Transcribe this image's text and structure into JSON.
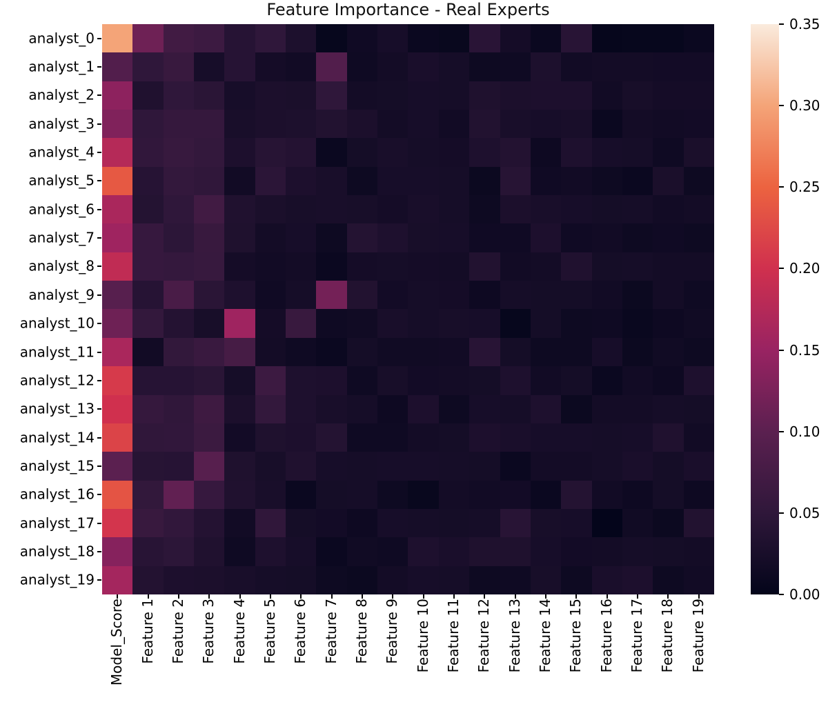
{
  "title": "Feature Importance - Real Experts",
  "chart_data": {
    "type": "heatmap",
    "rows": [
      "analyst_0",
      "analyst_1",
      "analyst_2",
      "analyst_3",
      "analyst_4",
      "analyst_5",
      "analyst_6",
      "analyst_7",
      "analyst_8",
      "analyst_9",
      "analyst_10",
      "analyst_11",
      "analyst_12",
      "analyst_13",
      "analyst_14",
      "analyst_15",
      "analyst_16",
      "analyst_17",
      "analyst_18",
      "analyst_19"
    ],
    "columns": [
      "Model_Score",
      "Feature 1",
      "Feature 2",
      "Feature 3",
      "Feature 4",
      "Feature 5",
      "Feature 6",
      "Feature 7",
      "Feature 8",
      "Feature 9",
      "Feature 10",
      "Feature 11",
      "Feature 12",
      "Feature 13",
      "Feature 14",
      "Feature 15",
      "Feature 16",
      "Feature 17",
      "Feature 18",
      "Feature 19"
    ],
    "values": [
      [
        0.3,
        0.115,
        0.07,
        0.065,
        0.04,
        0.05,
        0.03,
        0.005,
        0.015,
        0.023,
        0.009,
        0.007,
        0.043,
        0.02,
        0.009,
        0.042,
        0.003,
        0.005,
        0.005,
        0.009
      ],
      [
        0.09,
        0.05,
        0.06,
        0.023,
        0.04,
        0.02,
        0.017,
        0.09,
        0.014,
        0.019,
        0.026,
        0.022,
        0.013,
        0.014,
        0.03,
        0.017,
        0.019,
        0.019,
        0.018,
        0.018
      ],
      [
        0.14,
        0.033,
        0.05,
        0.044,
        0.023,
        0.028,
        0.027,
        0.05,
        0.019,
        0.021,
        0.023,
        0.022,
        0.032,
        0.028,
        0.029,
        0.029,
        0.017,
        0.024,
        0.02,
        0.02
      ],
      [
        0.13,
        0.05,
        0.057,
        0.057,
        0.025,
        0.028,
        0.03,
        0.035,
        0.028,
        0.019,
        0.023,
        0.017,
        0.035,
        0.025,
        0.023,
        0.025,
        0.009,
        0.019,
        0.017,
        0.018
      ],
      [
        0.175,
        0.052,
        0.059,
        0.054,
        0.029,
        0.041,
        0.037,
        0.009,
        0.021,
        0.025,
        0.022,
        0.02,
        0.031,
        0.036,
        0.012,
        0.031,
        0.023,
        0.022,
        0.014,
        0.027
      ],
      [
        0.24,
        0.04,
        0.054,
        0.051,
        0.017,
        0.045,
        0.029,
        0.025,
        0.013,
        0.023,
        0.023,
        0.022,
        0.01,
        0.041,
        0.015,
        0.017,
        0.013,
        0.009,
        0.027,
        0.013
      ],
      [
        0.165,
        0.038,
        0.05,
        0.07,
        0.033,
        0.027,
        0.024,
        0.025,
        0.024,
        0.02,
        0.025,
        0.022,
        0.013,
        0.028,
        0.025,
        0.023,
        0.021,
        0.022,
        0.017,
        0.019
      ],
      [
        0.155,
        0.058,
        0.047,
        0.06,
        0.032,
        0.019,
        0.023,
        0.013,
        0.038,
        0.031,
        0.024,
        0.023,
        0.015,
        0.015,
        0.029,
        0.015,
        0.017,
        0.013,
        0.015,
        0.013
      ],
      [
        0.185,
        0.058,
        0.056,
        0.059,
        0.02,
        0.017,
        0.019,
        0.009,
        0.02,
        0.022,
        0.02,
        0.019,
        0.035,
        0.017,
        0.019,
        0.033,
        0.021,
        0.022,
        0.019,
        0.019
      ],
      [
        0.095,
        0.04,
        0.08,
        0.044,
        0.031,
        0.015,
        0.022,
        0.12,
        0.035,
        0.018,
        0.022,
        0.02,
        0.012,
        0.022,
        0.021,
        0.021,
        0.017,
        0.01,
        0.019,
        0.014
      ],
      [
        0.115,
        0.054,
        0.037,
        0.024,
        0.155,
        0.02,
        0.06,
        0.014,
        0.016,
        0.025,
        0.022,
        0.024,
        0.023,
        0.005,
        0.021,
        0.013,
        0.014,
        0.008,
        0.012,
        0.016
      ],
      [
        0.165,
        0.017,
        0.053,
        0.061,
        0.076,
        0.019,
        0.014,
        0.009,
        0.021,
        0.016,
        0.016,
        0.017,
        0.042,
        0.021,
        0.013,
        0.013,
        0.023,
        0.01,
        0.016,
        0.013
      ],
      [
        0.21,
        0.04,
        0.04,
        0.044,
        0.022,
        0.065,
        0.031,
        0.029,
        0.014,
        0.024,
        0.018,
        0.019,
        0.021,
        0.031,
        0.017,
        0.021,
        0.009,
        0.017,
        0.012,
        0.031
      ],
      [
        0.2,
        0.057,
        0.051,
        0.067,
        0.028,
        0.054,
        0.031,
        0.025,
        0.022,
        0.012,
        0.029,
        0.013,
        0.023,
        0.022,
        0.031,
        0.01,
        0.019,
        0.019,
        0.022,
        0.021
      ],
      [
        0.22,
        0.051,
        0.052,
        0.064,
        0.018,
        0.032,
        0.029,
        0.038,
        0.014,
        0.014,
        0.019,
        0.021,
        0.029,
        0.026,
        0.023,
        0.023,
        0.022,
        0.023,
        0.033,
        0.017
      ],
      [
        0.1,
        0.041,
        0.04,
        0.095,
        0.032,
        0.024,
        0.033,
        0.023,
        0.022,
        0.023,
        0.023,
        0.022,
        0.021,
        0.009,
        0.019,
        0.019,
        0.022,
        0.026,
        0.021,
        0.026
      ],
      [
        0.235,
        0.053,
        0.105,
        0.058,
        0.033,
        0.025,
        0.009,
        0.021,
        0.022,
        0.013,
        0.007,
        0.019,
        0.017,
        0.018,
        0.009,
        0.038,
        0.017,
        0.012,
        0.021,
        0.012
      ],
      [
        0.205,
        0.06,
        0.052,
        0.037,
        0.017,
        0.051,
        0.021,
        0.018,
        0.012,
        0.023,
        0.022,
        0.021,
        0.022,
        0.042,
        0.024,
        0.023,
        0.001,
        0.016,
        0.01,
        0.035
      ],
      [
        0.135,
        0.042,
        0.047,
        0.033,
        0.014,
        0.031,
        0.023,
        0.009,
        0.016,
        0.014,
        0.031,
        0.026,
        0.032,
        0.032,
        0.023,
        0.018,
        0.019,
        0.022,
        0.021,
        0.019
      ],
      [
        0.16,
        0.036,
        0.029,
        0.028,
        0.025,
        0.022,
        0.021,
        0.013,
        0.01,
        0.019,
        0.023,
        0.022,
        0.013,
        0.014,
        0.024,
        0.013,
        0.026,
        0.029,
        0.013,
        0.017
      ]
    ],
    "vmin": 0.0,
    "vmax": 0.35,
    "colorbar": {
      "ticks": [
        {
          "value": 0.0,
          "label": "0.00"
        },
        {
          "value": 0.05,
          "label": "0.05"
        },
        {
          "value": 0.1,
          "label": "0.10"
        },
        {
          "value": 0.15,
          "label": "0.15"
        },
        {
          "value": 0.2,
          "label": "0.20"
        },
        {
          "value": 0.25,
          "label": "0.25"
        },
        {
          "value": 0.3,
          "label": "0.30"
        },
        {
          "value": 0.35,
          "label": "0.35"
        }
      ]
    },
    "colormap": {
      "name": "rocket",
      "stops": [
        {
          "v": 0.0,
          "color": "#03051A"
        },
        {
          "v": 0.05,
          "color": "#2F173A"
        },
        {
          "v": 0.1,
          "color": "#5B2050"
        },
        {
          "v": 0.15,
          "color": "#992362"
        },
        {
          "v": 0.2,
          "color": "#D0304E"
        },
        {
          "v": 0.25,
          "color": "#EC6340"
        },
        {
          "v": 0.3,
          "color": "#F4A478"
        },
        {
          "v": 0.35,
          "color": "#FAEBDD"
        }
      ]
    },
    "grid": false,
    "legend_position": "right-colorbar"
  }
}
